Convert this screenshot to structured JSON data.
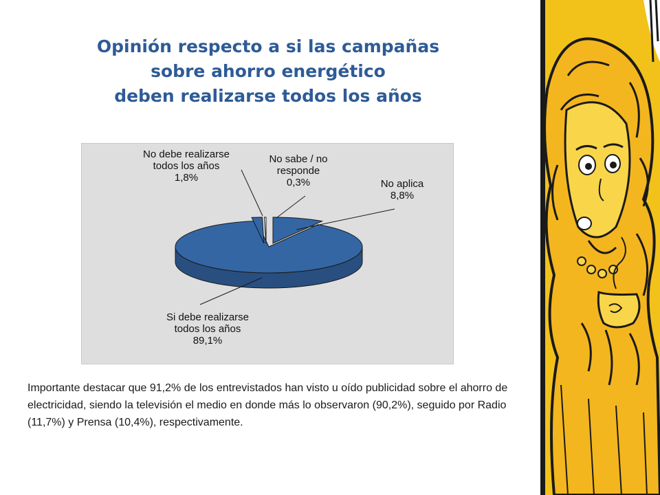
{
  "slide": {
    "title_lines": [
      "Opinión respecto a si las campañas",
      "sobre ahorro energético",
      "deben realizarse todos los años"
    ],
    "body_text": "Importante destacar que 91,2% de los entrevistados han visto u oído publicidad sobre el ahorro de electricidad, siendo la televisión el medio en donde más lo observaron (90,2%), seguido por Radio (11,7%) y Prensa (10,4%), respectivamente."
  },
  "chart_data": {
    "type": "pie",
    "style": "3d-exploded",
    "legend": "none",
    "slices": [
      {
        "label_lines": [
          "No aplica"
        ],
        "value_label": "8,8%",
        "value": 8.8,
        "color": "#3466a4"
      },
      {
        "label_lines": [
          "Si debe realizarse",
          "todos los años"
        ],
        "value_label": "89,1%",
        "value": 89.1,
        "color": "#3466a4"
      },
      {
        "label_lines": [
          "No debe realizarse",
          "todos los años"
        ],
        "value_label": "1,8%",
        "value": 1.8,
        "color": "#3466a4"
      },
      {
        "label_lines": [
          "No sabe / no",
          "responde"
        ],
        "value_label": "0,3%",
        "value": 0.3,
        "color": "#ffffff"
      }
    ]
  },
  "colors": {
    "title": "#2e5b96",
    "slice_fill": "#3466a4",
    "slice_side": "#284f80",
    "chart_background": "#dedede",
    "side_panel": "#f2c21b"
  }
}
